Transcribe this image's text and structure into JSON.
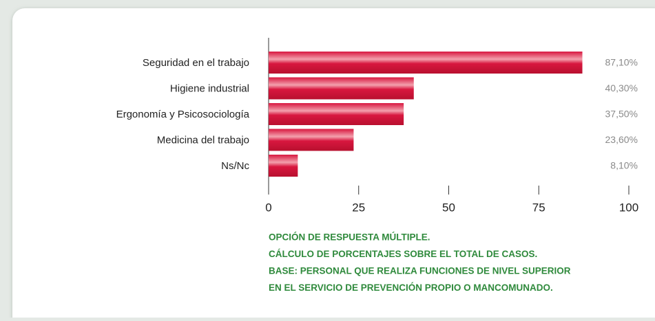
{
  "chart_data": {
    "type": "bar",
    "orientation": "horizontal",
    "categories": [
      "Seguridad en el trabajo",
      "Higiene industrial",
      "Ergonomía y  Psicosociología",
      "Medicina del trabajo",
      "Ns/Nc"
    ],
    "values": [
      87.1,
      40.3,
      37.5,
      23.6,
      8.1
    ],
    "value_labels": [
      "87,10%",
      "40,30%",
      "37,50%",
      "23,60%",
      "8,10%"
    ],
    "color": "#d8173f",
    "xlim": [
      0,
      100
    ],
    "xticks": [
      0,
      25,
      50,
      75,
      100
    ],
    "notes": [
      "OPCIÓN DE RESPUESTA MÚLTIPLE.",
      "CÁLCULO DE PORCENTAJES SOBRE EL TOTAL DE CASOS.",
      "BASE: PERSONAL QUE REALIZA FUNCIONES DE NIVEL SUPERIOR",
      "EN EL SERVICIO DE PREVENCIÓN PROPIO O MANCOMUNADO."
    ]
  }
}
